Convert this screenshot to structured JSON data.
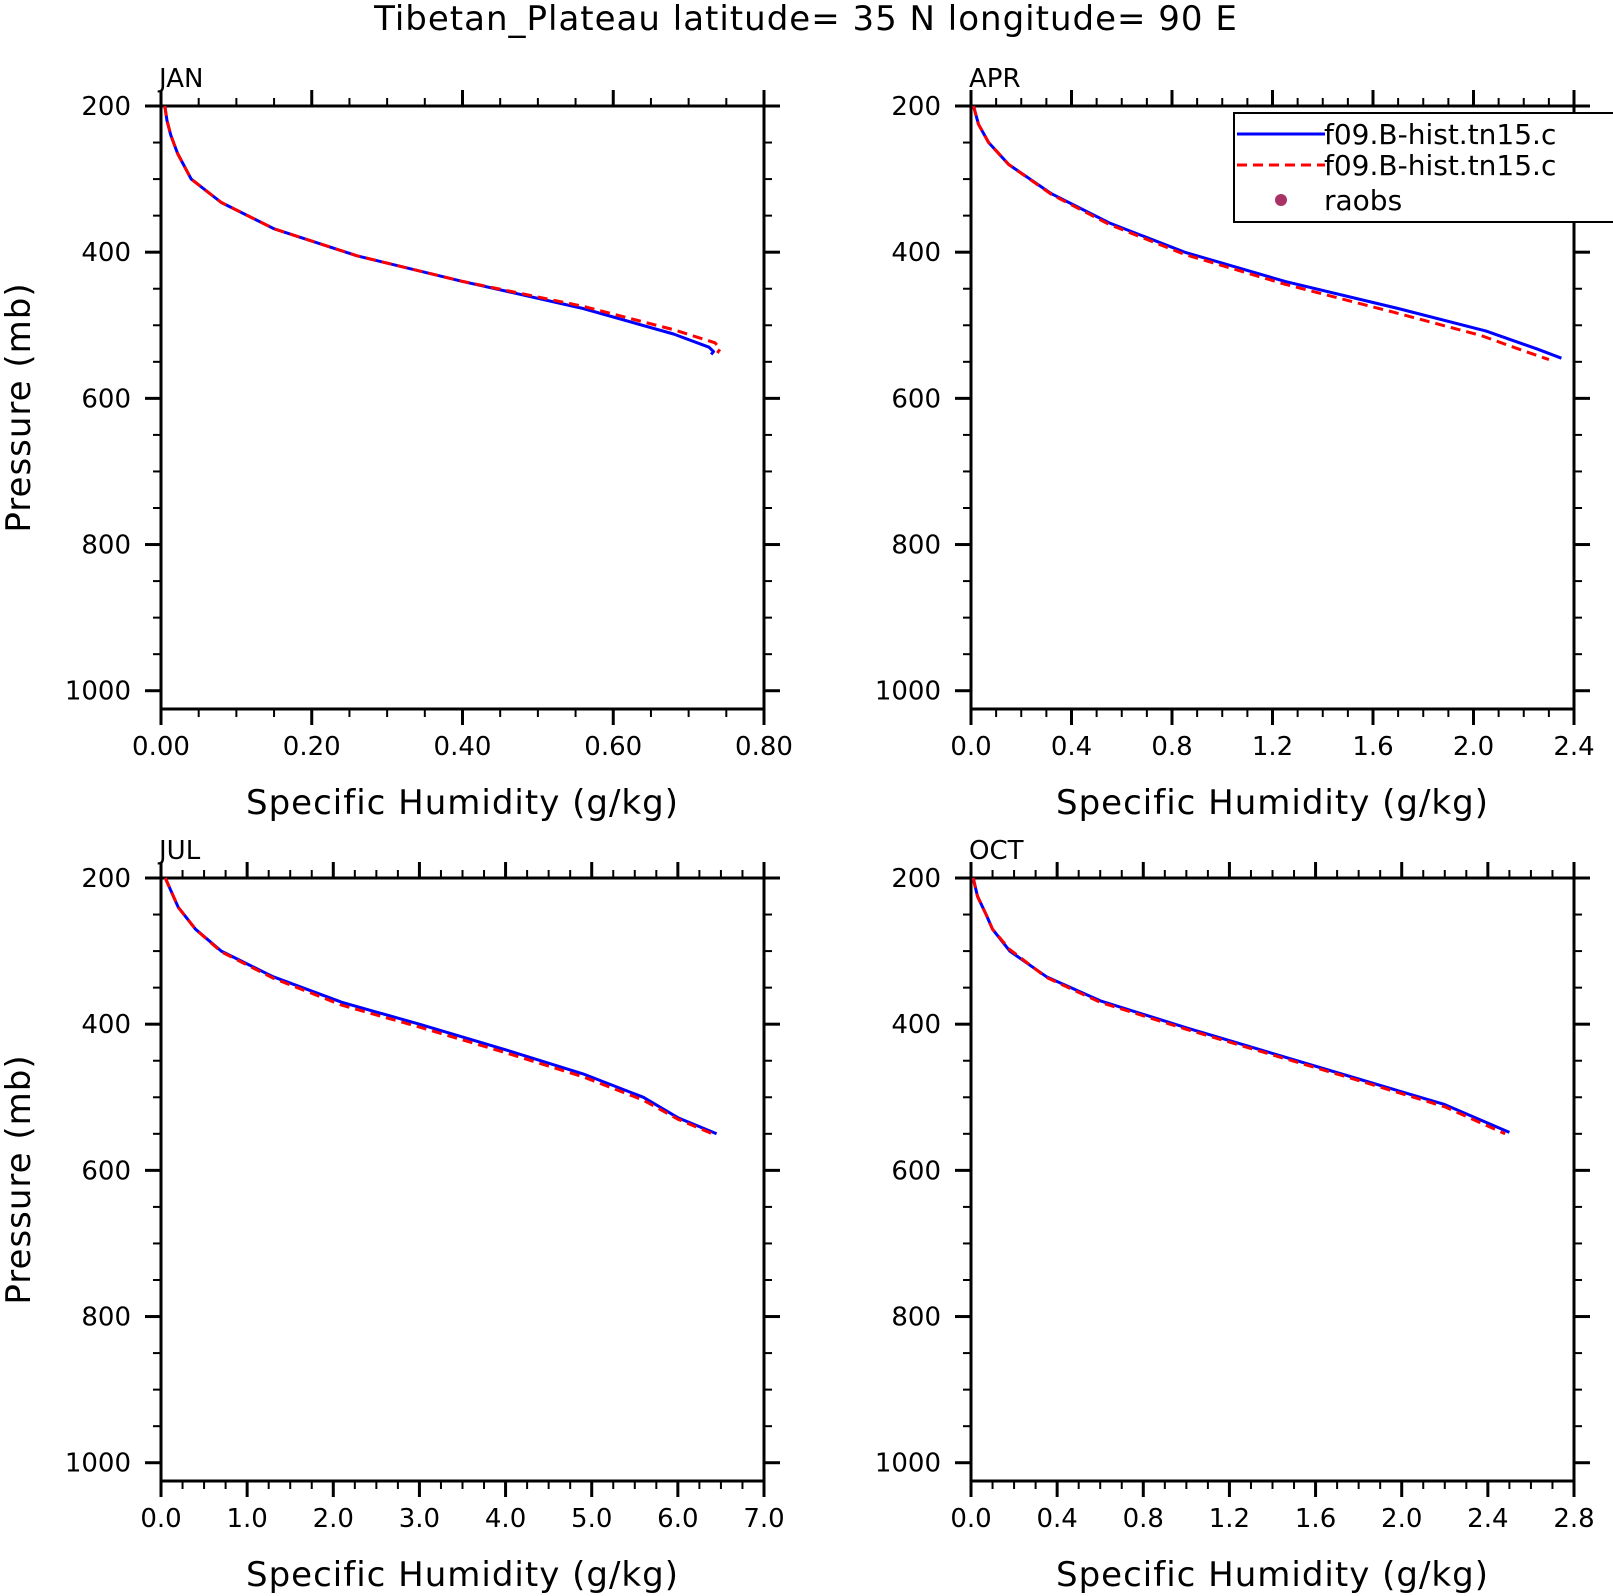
{
  "title": "Tibetan_Plateau  latitude= 35 N longitude= 90 E",
  "legend": {
    "entries": [
      {
        "label": "f09.B-hist.tn15.c",
        "color": "#0000ff",
        "style": "solid"
      },
      {
        "label": "f09.B-hist.tn15.c",
        "color": "#ff0000",
        "style": "dashed"
      },
      {
        "label": "raobs",
        "color": "#aa3366",
        "style": "dot"
      }
    ]
  },
  "chart_data": [
    {
      "type": "line",
      "month": "JAN",
      "xlabel": "Specific Humidity (g/kg)",
      "ylabel": "Pressure (mb)",
      "xlim": [
        0,
        0.8
      ],
      "ylim": [
        200,
        1025
      ],
      "y_inverted": true,
      "xticks": [
        "0.00",
        "0.20",
        "0.40",
        "0.60",
        "0.80"
      ],
      "xtick_values": [
        0,
        0.2,
        0.4,
        0.6,
        0.8
      ],
      "x_minor": 0.05,
      "yticks": [
        "200",
        "400",
        "600",
        "800",
        "1000"
      ],
      "ytick_values": [
        200,
        400,
        600,
        800,
        1000
      ],
      "y_minor": 50,
      "series": [
        {
          "name": "f09.B-hist.tn15.c",
          "color": "#0000ff",
          "dash": "",
          "points": [
            [
              0.005,
              200
            ],
            [
              0.008,
              220
            ],
            [
              0.013,
              240
            ],
            [
              0.022,
              265
            ],
            [
              0.04,
              300
            ],
            [
              0.08,
              332
            ],
            [
              0.15,
              368
            ],
            [
              0.26,
              405
            ],
            [
              0.4,
              440
            ],
            [
              0.56,
              477
            ],
            [
              0.68,
              512
            ],
            [
              0.727,
              530
            ],
            [
              0.733,
              536
            ],
            [
              0.73,
              540
            ]
          ]
        },
        {
          "name": "f09.B-hist.tn15.c",
          "color": "#ff0000",
          "dash": "10,6",
          "points": [
            [
              0.005,
              200
            ],
            [
              0.008,
              220
            ],
            [
              0.013,
              240
            ],
            [
              0.022,
              265
            ],
            [
              0.04,
              300
            ],
            [
              0.08,
              332
            ],
            [
              0.15,
              368
            ],
            [
              0.26,
              405
            ],
            [
              0.4,
              440
            ],
            [
              0.56,
              474
            ],
            [
              0.68,
              506
            ],
            [
              0.735,
              524
            ],
            [
              0.742,
              532
            ],
            [
              0.738,
              538
            ]
          ]
        }
      ]
    },
    {
      "type": "line",
      "month": "APR",
      "xlabel": "Specific Humidity (g/kg)",
      "ylabel": "",
      "xlim": [
        0,
        2.4
      ],
      "ylim": [
        200,
        1025
      ],
      "y_inverted": true,
      "xticks": [
        "0.0",
        "0.4",
        "0.8",
        "1.2",
        "1.6",
        "2.0",
        "2.4"
      ],
      "xtick_values": [
        0,
        0.4,
        0.8,
        1.2,
        1.6,
        2.0,
        2.4
      ],
      "x_minor": 0.1,
      "yticks": [
        "200",
        "400",
        "600",
        "800",
        "1000"
      ],
      "ytick_values": [
        200,
        400,
        600,
        800,
        1000
      ],
      "y_minor": 50,
      "series": [
        {
          "name": "f09.B-hist.tn15.c",
          "color": "#0000ff",
          "dash": "",
          "points": [
            [
              0.01,
              200
            ],
            [
              0.03,
              225
            ],
            [
              0.07,
              250
            ],
            [
              0.15,
              280
            ],
            [
              0.32,
              320
            ],
            [
              0.55,
              360
            ],
            [
              0.85,
              400
            ],
            [
              1.25,
              440
            ],
            [
              1.7,
              477
            ],
            [
              2.05,
              508
            ],
            [
              2.25,
              532
            ],
            [
              2.35,
              545
            ]
          ]
        },
        {
          "name": "f09.B-hist.tn15.c",
          "color": "#ff0000",
          "dash": "10,6",
          "points": [
            [
              0.01,
              200
            ],
            [
              0.03,
              225
            ],
            [
              0.07,
              250
            ],
            [
              0.15,
              280
            ],
            [
              0.32,
              321
            ],
            [
              0.55,
              362
            ],
            [
              0.85,
              403
            ],
            [
              1.25,
              444
            ],
            [
              1.68,
              482
            ],
            [
              2.03,
              514
            ],
            [
              2.2,
              535
            ],
            [
              2.3,
              547
            ]
          ]
        }
      ]
    },
    {
      "type": "line",
      "month": "JUL",
      "xlabel": "Specific Humidity (g/kg)",
      "ylabel": "Pressure (mb)",
      "xlim": [
        0,
        7.0
      ],
      "ylim": [
        200,
        1025
      ],
      "y_inverted": true,
      "xticks": [
        "0.0",
        "1.0",
        "2.0",
        "3.0",
        "4.0",
        "5.0",
        "6.0",
        "7.0"
      ],
      "xtick_values": [
        0,
        1,
        2,
        3,
        4,
        5,
        6,
        7
      ],
      "x_minor": 0.25,
      "yticks": [
        "200",
        "400",
        "600",
        "800",
        "1000"
      ],
      "ytick_values": [
        200,
        400,
        600,
        800,
        1000
      ],
      "y_minor": 50,
      "series": [
        {
          "name": "f09.B-hist.tn15.c",
          "color": "#0000ff",
          "dash": "",
          "points": [
            [
              0.05,
              200
            ],
            [
              0.2,
              240
            ],
            [
              0.4,
              270
            ],
            [
              0.7,
              300
            ],
            [
              1.3,
              335
            ],
            [
              2.1,
              370
            ],
            [
              3.0,
              400
            ],
            [
              4.0,
              435
            ],
            [
              4.9,
              468
            ],
            [
              5.6,
              500
            ],
            [
              6.0,
              528
            ],
            [
              6.45,
              550
            ]
          ]
        },
        {
          "name": "f09.B-hist.tn15.c",
          "color": "#ff0000",
          "dash": "10,6",
          "points": [
            [
              0.05,
              200
            ],
            [
              0.2,
              240
            ],
            [
              0.4,
              270
            ],
            [
              0.7,
              301
            ],
            [
              1.3,
              337
            ],
            [
              2.1,
              374
            ],
            [
              3.0,
              404
            ],
            [
              4.0,
              439
            ],
            [
              4.9,
              472
            ],
            [
              5.6,
              504
            ],
            [
              6.0,
              530
            ],
            [
              6.4,
              550
            ]
          ]
        }
      ]
    },
    {
      "type": "line",
      "month": "OCT",
      "xlabel": "Specific Humidity (g/kg)",
      "ylabel": "",
      "xlim": [
        0,
        2.8
      ],
      "ylim": [
        200,
        1025
      ],
      "y_inverted": true,
      "xticks": [
        "0.0",
        "0.4",
        "0.8",
        "1.2",
        "1.6",
        "2.0",
        "2.4",
        "2.8"
      ],
      "xtick_values": [
        0,
        0.4,
        0.8,
        1.2,
        1.6,
        2.0,
        2.4,
        2.8
      ],
      "x_minor": 0.1,
      "yticks": [
        "200",
        "400",
        "600",
        "800",
        "1000"
      ],
      "ytick_values": [
        200,
        400,
        600,
        800,
        1000
      ],
      "y_minor": 50,
      "series": [
        {
          "name": "f09.B-hist.tn15.c",
          "color": "#0000ff",
          "dash": "",
          "points": [
            [
              0.01,
              200
            ],
            [
              0.03,
              225
            ],
            [
              0.07,
              250
            ],
            [
              0.1,
              270
            ],
            [
              0.18,
              300
            ],
            [
              0.35,
              335
            ],
            [
              0.6,
              368
            ],
            [
              1.0,
              405
            ],
            [
              1.4,
              440
            ],
            [
              1.8,
              475
            ],
            [
              2.2,
              510
            ],
            [
              2.5,
              548
            ]
          ]
        },
        {
          "name": "f09.B-hist.tn15.c",
          "color": "#ff0000",
          "dash": "10,6",
          "points": [
            [
              0.01,
              200
            ],
            [
              0.03,
              225
            ],
            [
              0.07,
              250
            ],
            [
              0.1,
              270
            ],
            [
              0.18,
              298
            ],
            [
              0.35,
              336
            ],
            [
              0.6,
              370
            ],
            [
              1.0,
              407
            ],
            [
              1.4,
              442
            ],
            [
              1.8,
              477
            ],
            [
              2.2,
              513
            ],
            [
              2.48,
              550
            ]
          ]
        }
      ]
    }
  ]
}
